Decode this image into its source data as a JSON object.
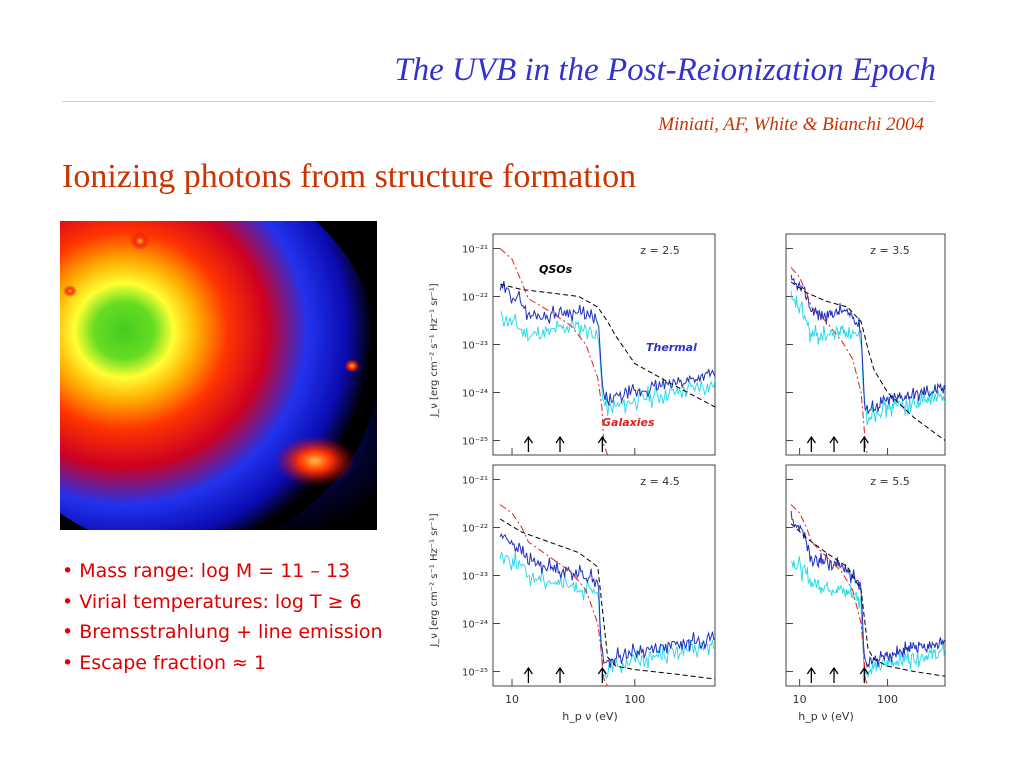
{
  "slide": {
    "title": "The UVB in the Post-Reionization Epoch",
    "citation": "Miniati, AF, White & Bianchi 2004",
    "heading": "Ionizing photons from structure formation",
    "bullets": [
      "Mass range: log M = 11 – 13",
      "Virial temperatures: log T ≥ 6",
      "Bremsstrahlung + line emission",
      "Escape fraction ≈ 1"
    ],
    "colors": {
      "title": "#3333cc",
      "accent": "#cc3300",
      "bullets": "#e00000"
    }
  },
  "chart_data": {
    "type": "line",
    "ylabel": "J_ν [erg cm⁻² s⁻¹ Hz⁻¹ sr⁻¹]",
    "xlabel": "h_p ν (eV)",
    "x_scale": "log",
    "y_scale": "log",
    "xlim": [
      7,
      450
    ],
    "ylim": [
      5e-26,
      2e-21
    ],
    "x_ticks": [
      10,
      100
    ],
    "y_ticks": [
      "10⁻²¹",
      "10⁻²²",
      "10⁻²³",
      "10⁻²⁴",
      "10⁻²⁵"
    ],
    "arrow_energies": [
      13.6,
      24.6,
      54.4
    ],
    "annotations": {
      "qsos": "QSOs",
      "thermal": "Thermal",
      "galaxies": "Galaxies"
    },
    "series_colors": {
      "qsos": "#000000",
      "galaxies": "#dd2222",
      "thermal_dark": "#1f2fbf",
      "thermal_light": "#22d8e8"
    },
    "panels": [
      {
        "label": "z = 2.5",
        "qsos": {
          "x": [
            8,
            12,
            20,
            35,
            50,
            60,
            70,
            100,
            200,
            450
          ],
          "y": [
            1.8e-22,
            1.4e-22,
            1.2e-22,
            1e-22,
            6e-23,
            3e-23,
            1.5e-23,
            4e-24,
            1.5e-24,
            5e-25
          ]
        },
        "galaxies": {
          "x": [
            8,
            10,
            12,
            13.6,
            20,
            30,
            40,
            50,
            54,
            56,
            60
          ],
          "y": [
            1e-21,
            6e-22,
            2e-22,
            9e-23,
            5e-23,
            2.5e-23,
            1e-23,
            2e-24,
            5e-25,
            8e-26,
            5e-26
          ]
        },
        "thermal_dark": {
          "x": [
            8,
            10,
            12,
            13.6,
            20,
            30,
            40,
            50,
            54,
            56,
            60,
            70,
            100,
            200,
            450
          ],
          "y": [
            1.5e-22,
            1.1e-22,
            8e-23,
            4e-23,
            4e-23,
            5e-23,
            4e-23,
            3e-23,
            2e-24,
            8e-25,
            6e-25,
            8e-25,
            1e-24,
            1.5e-24,
            2.5e-24
          ]
        },
        "thermal_light": {
          "x": [
            8,
            10,
            12,
            13.6,
            20,
            30,
            40,
            50,
            54,
            56,
            60,
            70,
            100,
            200,
            450
          ],
          "y": [
            4e-23,
            3e-23,
            2e-23,
            1.5e-23,
            1.8e-23,
            2.5e-23,
            2.2e-23,
            1.5e-23,
            1.5e-24,
            6e-25,
            4e-25,
            5e-25,
            7e-25,
            1e-24,
            1.5e-24
          ]
        }
      },
      {
        "label": "z = 3.5",
        "qsos": {
          "x": [
            8,
            12,
            20,
            35,
            50,
            60,
            70,
            100,
            200,
            450
          ],
          "y": [
            2e-22,
            1.2e-22,
            8e-23,
            6e-23,
            3e-23,
            8e-24,
            3e-24,
            1e-24,
            3e-25,
            1e-25
          ]
        },
        "galaxies": {
          "x": [
            8,
            10,
            12,
            13.6,
            20,
            30,
            40,
            50,
            54,
            56,
            60
          ],
          "y": [
            4e-22,
            2.5e-22,
            1.2e-22,
            6e-23,
            3e-23,
            1.2e-23,
            5e-24,
            1e-24,
            2e-25,
            7e-26,
            5e-26
          ]
        },
        "thermal_dark": {
          "x": [
            8,
            10,
            12,
            13.6,
            20,
            30,
            40,
            50,
            54,
            56,
            60,
            70,
            100,
            200,
            450
          ],
          "y": [
            2e-22,
            1.5e-22,
            1e-22,
            5e-23,
            4e-23,
            5e-23,
            4e-23,
            2e-23,
            1e-24,
            5e-25,
            4e-25,
            5e-25,
            7e-25,
            9e-25,
            1.2e-24
          ]
        },
        "thermal_light": {
          "x": [
            8,
            10,
            12,
            13.6,
            20,
            30,
            40,
            50,
            54,
            56,
            60,
            70,
            100,
            200,
            450
          ],
          "y": [
            8e-23,
            6e-23,
            3e-23,
            1.5e-23,
            1.5e-23,
            2e-23,
            1.8e-23,
            1e-23,
            8e-25,
            4e-25,
            3e-25,
            4e-25,
            5e-25,
            6e-25,
            8e-25
          ]
        }
      },
      {
        "label": "z = 4.5",
        "qsos": {
          "x": [
            8,
            12,
            20,
            35,
            50,
            60,
            70,
            100,
            200,
            450
          ],
          "y": [
            1.5e-22,
            8e-23,
            5e-23,
            3e-23,
            1.5e-23,
            2e-25,
            1.3e-25,
            1.1e-25,
            9e-26,
            7e-26
          ]
        },
        "galaxies": {
          "x": [
            8,
            10,
            12,
            13.6,
            20,
            30,
            40,
            50,
            54,
            56,
            60
          ],
          "y": [
            3e-22,
            2e-22,
            1e-22,
            5e-23,
            2.5e-23,
            1.2e-23,
            5e-24,
            1e-24,
            2e-25,
            7e-26,
            5e-26
          ]
        },
        "thermal_dark": {
          "x": [
            8,
            10,
            12,
            13.6,
            20,
            30,
            40,
            50,
            54,
            56,
            60,
            70,
            100,
            200,
            450
          ],
          "y": [
            7e-23,
            5e-23,
            3e-23,
            2e-23,
            1.5e-23,
            1.2e-23,
            1e-23,
            8e-24,
            2e-25,
            1.5e-25,
            1.5e-25,
            2e-25,
            2.5e-25,
            3.5e-25,
            5e-25
          ]
        },
        "thermal_light": {
          "x": [
            8,
            10,
            12,
            13.6,
            20,
            30,
            40,
            50,
            54,
            56,
            60,
            70,
            100,
            200,
            450
          ],
          "y": [
            3e-23,
            2e-23,
            1.5e-23,
            1e-23,
            8e-24,
            6e-24,
            5e-24,
            4e-24,
            1.2e-25,
            1e-25,
            1e-25,
            1.4e-25,
            1.8e-25,
            2.5e-25,
            3.5e-25
          ]
        }
      },
      {
        "label": "z = 5.5",
        "qsos": {
          "x": [
            8,
            12,
            20,
            35,
            50,
            60,
            70,
            100,
            200,
            450
          ],
          "y": [
            1.2e-22,
            6e-23,
            3e-23,
            1.5e-23,
            5e-24,
            3e-25,
            1.8e-25,
            1.3e-25,
            1e-25,
            8e-26
          ]
        },
        "galaxies": {
          "x": [
            8,
            10,
            12,
            13.6,
            20,
            30,
            40,
            50,
            54,
            56,
            60
          ],
          "y": [
            3e-22,
            2e-22,
            1e-22,
            5e-23,
            2.5e-23,
            1.2e-23,
            5e-24,
            1e-24,
            2e-25,
            7e-26,
            5e-26
          ]
        },
        "thermal_dark": {
          "x": [
            8,
            10,
            12,
            13.6,
            20,
            30,
            40,
            50,
            54,
            56,
            60,
            70,
            100,
            200,
            450
          ],
          "y": [
            1.5e-22,
            1e-22,
            5e-23,
            2e-23,
            2e-23,
            1.5e-23,
            1e-23,
            6e-24,
            2e-25,
            1.5e-25,
            1.5e-25,
            1.8e-25,
            2.2e-25,
            3e-25,
            4e-25
          ]
        },
        "thermal_light": {
          "x": [
            8,
            10,
            12,
            13.6,
            20,
            30,
            40,
            50,
            54,
            56,
            60,
            70,
            100,
            200,
            450
          ],
          "y": [
            2e-23,
            1.5e-23,
            1e-23,
            7e-24,
            6e-24,
            5e-24,
            4e-24,
            3e-24,
            1.2e-25,
            1e-25,
            1e-25,
            1.2e-25,
            1.5e-25,
            2e-25,
            2.5e-25
          ]
        }
      }
    ]
  }
}
